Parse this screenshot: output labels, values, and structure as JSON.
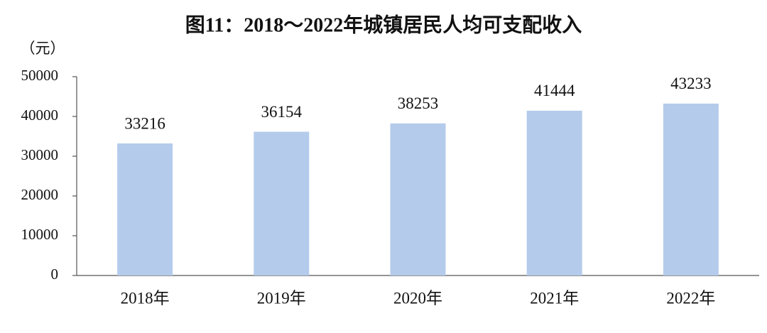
{
  "chart_data": {
    "type": "bar",
    "title": "图11：2018～2022年城镇居民人均可支配收入",
    "y_label": "（元）",
    "categories": [
      "2018年",
      "2019年",
      "2020年",
      "2021年",
      "2022年"
    ],
    "values": [
      33216,
      36154,
      38253,
      41444,
      43233
    ],
    "color": "#b4cbeb",
    "ylim": [
      0,
      50000
    ],
    "yticks": [
      0,
      10000,
      20000,
      30000,
      40000,
      50000
    ],
    "grid": false,
    "data_labels": true
  }
}
